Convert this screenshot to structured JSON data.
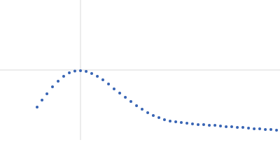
{
  "chart_data": {
    "type": "scatter",
    "x": [
      0.461,
      0.522,
      0.583,
      0.652,
      0.722,
      0.791,
      0.861,
      0.93,
      1.0,
      1.07,
      1.139,
      1.209,
      1.278,
      1.348,
      1.417,
      1.487,
      1.557,
      1.626,
      1.696,
      1.765,
      1.835,
      1.904,
      1.974,
      2.043,
      2.113,
      2.183,
      2.252,
      2.322,
      2.391,
      2.461,
      2.53,
      2.6,
      2.67,
      2.739,
      2.809,
      2.878,
      2.948,
      3.017,
      3.087,
      3.157,
      3.226,
      3.296,
      3.365,
      3.435
    ],
    "values": [
      0.47,
      0.57,
      0.66,
      0.76,
      0.84,
      0.91,
      0.96,
      0.985,
      0.99,
      0.98,
      0.95,
      0.91,
      0.86,
      0.8,
      0.73,
      0.67,
      0.61,
      0.55,
      0.49,
      0.44,
      0.39,
      0.35,
      0.32,
      0.29,
      0.27,
      0.26,
      0.25,
      0.24,
      0.23,
      0.22,
      0.22,
      0.21,
      0.21,
      0.2,
      0.19,
      0.19,
      0.18,
      0.18,
      0.17,
      0.16,
      0.16,
      0.15,
      0.15,
      0.14
    ],
    "color": "#3a66b5",
    "xlim": [
      0,
      3.478
    ],
    "ylim": [
      0,
      2
    ],
    "xticks": [
      1
    ],
    "yticks": [
      1
    ],
    "grid": true
  }
}
